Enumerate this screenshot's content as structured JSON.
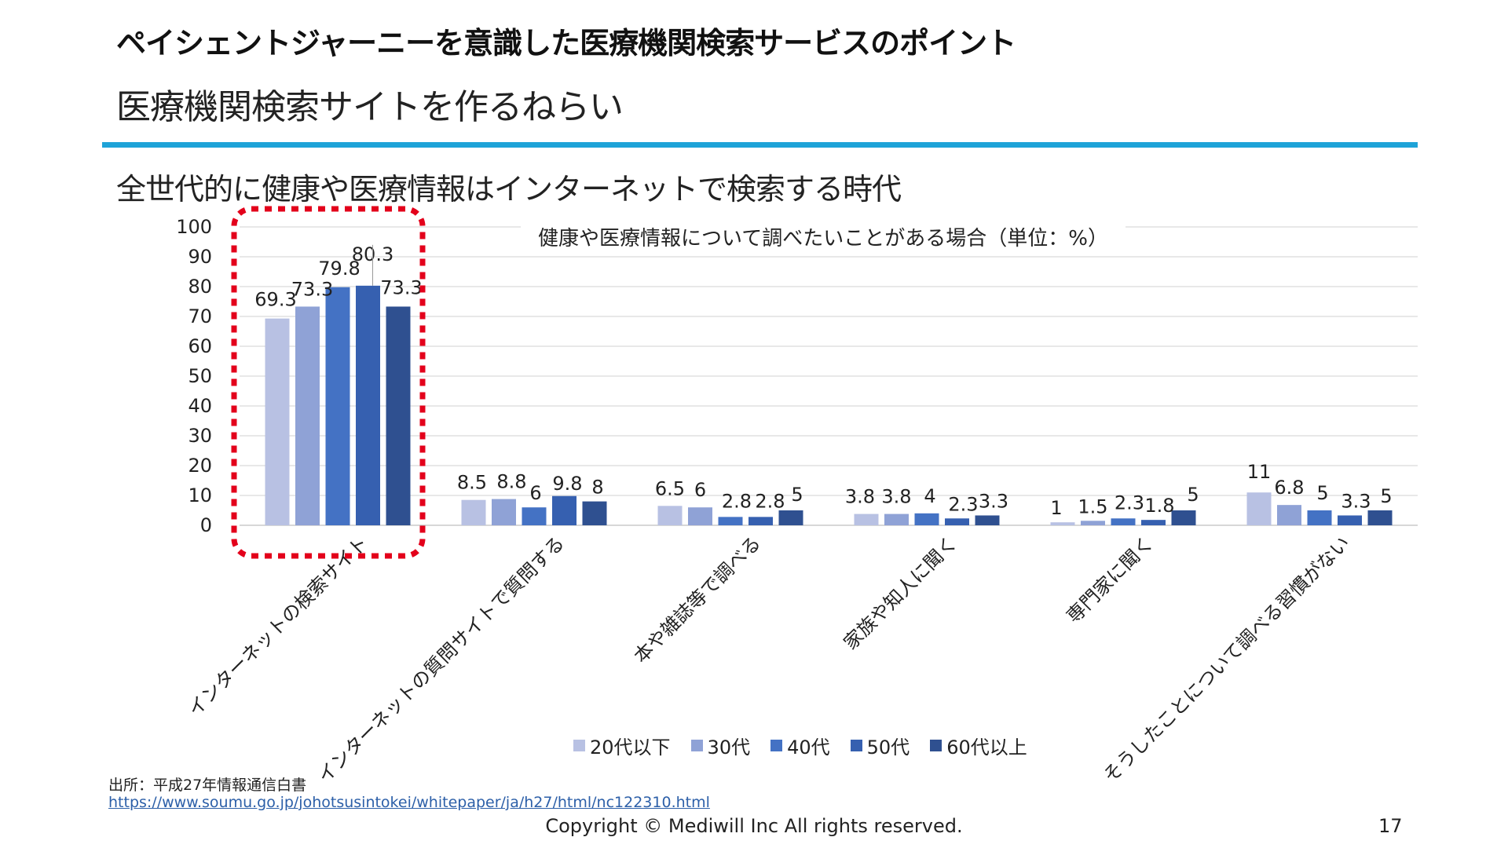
{
  "header": {
    "title": "ペイシェントジャーニーを意識した医療機関検索サービスのポイント",
    "subtitle": "医療機関検索サイトを作るねらい"
  },
  "section": {
    "heading": "全世代的に健康や医療情報はインターネットで検索する時代"
  },
  "chart_data": {
    "type": "bar",
    "title": "健康や医療情報について調べたいことがある場合（単位：%）",
    "xlabel": "",
    "ylabel": "",
    "ylim": [
      0,
      100
    ],
    "yticks": [
      0,
      10,
      20,
      30,
      40,
      50,
      60,
      70,
      80,
      90,
      100
    ],
    "grid": true,
    "legend_position": "bottom",
    "categories": [
      "インターネットの検索サイト",
      "インターネットの質問サイトで質問する",
      "本や雑誌等で調べる",
      "家族や知人に聞く",
      "専門家に聞く",
      "そうしたことについて調べる習慣がない"
    ],
    "series": [
      {
        "name": "20代以下",
        "color": "#b8c1e3",
        "values": [
          69.3,
          8.5,
          6.5,
          3.8,
          1,
          11
        ]
      },
      {
        "name": "30代",
        "color": "#8fa2d6",
        "values": [
          73.3,
          8.8,
          6,
          3.8,
          1.5,
          6.8
        ]
      },
      {
        "name": "40代",
        "color": "#4472c4",
        "values": [
          79.8,
          6,
          2.8,
          4,
          2.3,
          5
        ]
      },
      {
        "name": "50代",
        "color": "#3660b0",
        "values": [
          80.3,
          9.8,
          2.8,
          2.3,
          1.8,
          3.3
        ]
      },
      {
        "name": "60代以上",
        "color": "#2f5090",
        "values": [
          73.3,
          8,
          5,
          3.3,
          5,
          5
        ]
      }
    ],
    "highlight": {
      "category_index": 0,
      "color": "#e3001b",
      "style": "dashed"
    }
  },
  "source": {
    "label": "出所：平成27年情報通信白書",
    "url": "https://www.soumu.go.jp/johotsusintokei/whitepaper/ja/h27/html/nc122310.html"
  },
  "footer": {
    "copyright": "Copyright © Mediwill Inc All rights reserved.",
    "page_number": "17"
  }
}
